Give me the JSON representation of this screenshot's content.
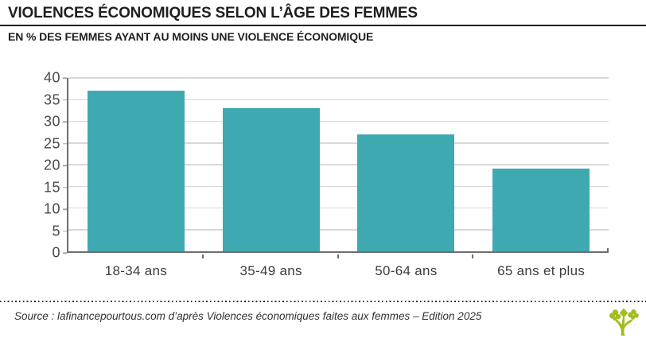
{
  "header": {
    "title": "VIOLENCES ÉCONOMIQUES SELON L’ÂGE DES FEMMES",
    "subtitle": "EN % DES FEMMES AYANT AU MOINS UNE VIOLENCE ÉCONOMIQUE"
  },
  "chart_data": {
    "type": "bar",
    "categories": [
      "18-34 ans",
      "35-49 ans",
      "50-64 ans",
      "65 ans et plus"
    ],
    "values": [
      37,
      33,
      27,
      19
    ],
    "title": "VIOLENCES ÉCONOMIQUES SELON L’ÂGE DES FEMMES",
    "xlabel": "",
    "ylabel": "EN % DES FEMMES AYANT AU MOINS UNE VIOLENCE ÉCONOMIQUE",
    "ylim": [
      0,
      40
    ],
    "ytick_step": 5,
    "grid": true,
    "legend_position": "none",
    "bar_color": "#3FA9B2",
    "bar_width_fraction": 0.72
  },
  "footer": {
    "source_text": "Source : lafinancepourtous.com d’après Violences économiques faites aux femmes – Edition 2025",
    "logo_icon": "tree-logo",
    "logo_color": "#A1BD20"
  },
  "colors": {
    "background": "#FFFFFF",
    "bar": "#3FA9B2",
    "gridline": "#D8D8D8",
    "axis": "#6E6E6E",
    "title_text": "#1F1F1F",
    "axis_label_text": "#4A4A4A",
    "logo_green": "#A1BD20"
  }
}
